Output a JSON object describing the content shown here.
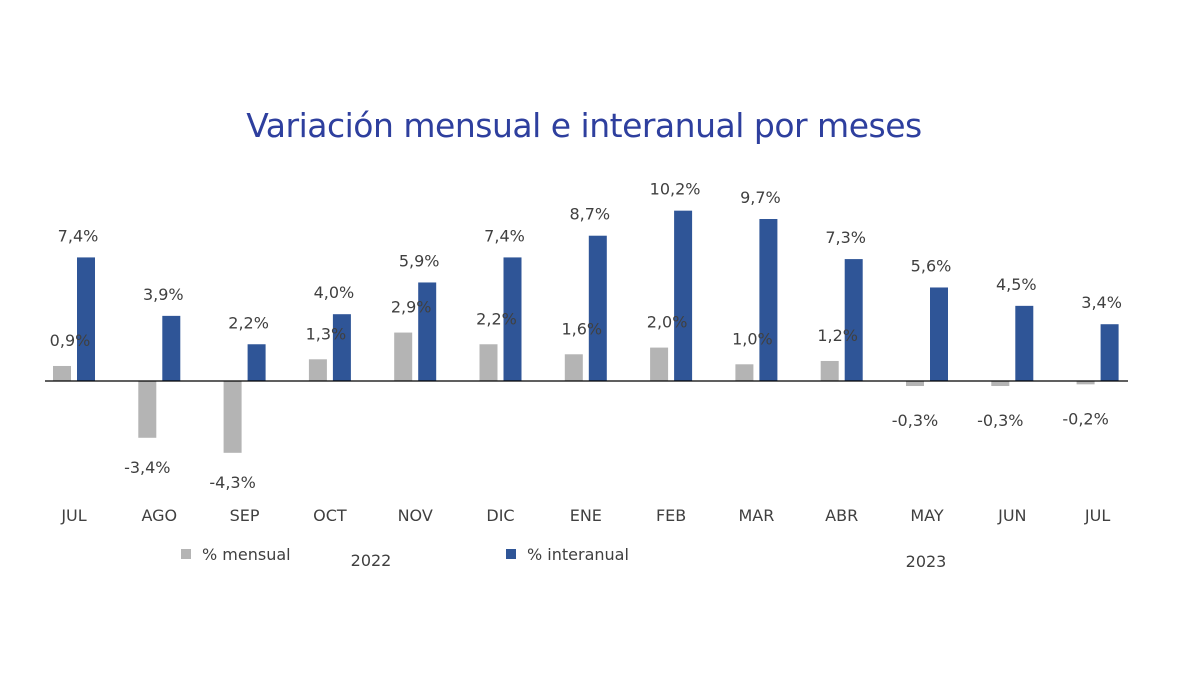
{
  "chart_data": {
    "type": "bar",
    "title": "Variación mensual e interanual por meses",
    "categories": [
      "JUL",
      "AGO",
      "SEP",
      "OCT",
      "NOV",
      "DIC",
      "ENE",
      "FEB",
      "MAR",
      "ABR",
      "MAY",
      "JUN",
      "JUL"
    ],
    "series": [
      {
        "name": "% mensual",
        "color": "#b4b4b4",
        "values": [
          0.9,
          -3.4,
          -4.3,
          1.3,
          2.9,
          2.2,
          1.6,
          2.0,
          1.0,
          1.2,
          -0.3,
          -0.3,
          -0.2
        ],
        "labels": [
          "0,9%",
          "-3,4%",
          "-4,3%",
          "1,3%",
          "2,9%",
          "2,2%",
          "1,6%",
          "2,0%",
          "1,0%",
          "1,2%",
          "-0,3%",
          "-0,3%",
          "-0,2%"
        ]
      },
      {
        "name": "% interanual",
        "color": "#2f5597",
        "values": [
          7.4,
          3.9,
          2.2,
          4.0,
          5.9,
          7.4,
          8.7,
          10.2,
          9.7,
          7.3,
          5.6,
          4.5,
          3.4
        ],
        "labels": [
          "7,4%",
          "3,9%",
          "2,2%",
          "4,0%",
          "5,9%",
          "7,4%",
          "8,7%",
          "10,2%",
          "9,7%",
          "7,3%",
          "5,6%",
          "4,5%",
          "3,4%"
        ]
      }
    ],
    "year_labels": [
      "2022",
      "2023"
    ],
    "legend_position": "bottom",
    "grid": false,
    "title_color": "#2e3f9e"
  }
}
